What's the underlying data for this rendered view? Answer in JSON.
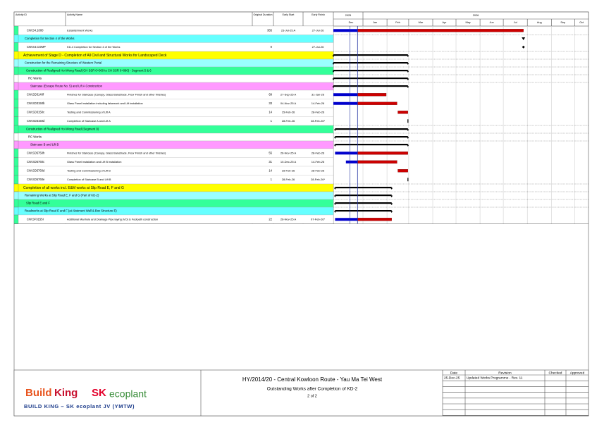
{
  "header": {
    "columns": [
      "Activity ID",
      "Activity Name",
      "Original Duration",
      "Early Start",
      "Early Finish"
    ],
    "years": [
      "2025",
      "2026"
    ],
    "months": [
      "Dec",
      "Jan",
      "Feb",
      "Mar",
      "Apr",
      "May",
      "Jun",
      "Jul",
      "Aug",
      "Sep",
      "Oct"
    ]
  },
  "rows": [
    {
      "id": "CW.S4.1000",
      "name": "Establishment Works",
      "duration": "365",
      "start": "23-Jul-25 A",
      "finish": "27-Jul-26"
    },
    {
      "label": "Completion for Section 4 of the Works",
      "color": "#66ffff"
    },
    {
      "id": "CW.S4.COMP",
      "name": "KD-4 Completion for Section 4 of the Works",
      "duration": "0",
      "finish": "27-Jul-26"
    },
    {
      "label": "Achievement of Stage D -  Completion of All Civil and Structural Works for Landscaped Deck",
      "color": "#ffff00"
    },
    {
      "label": "Construction for the Remaining Structure of Western Portal",
      "color": "#99ffff"
    },
    {
      "label": "Construction of Realigned Hoi Wong Road (CH SSR 0+000 to CH SSR 0+080) - Segment 5 & 6",
      "color": "#33ff99"
    },
    {
      "label": "RC Works",
      "color": "#ffffff"
    },
    {
      "label": "Staircase (Escape Route No. 5) and Lift A Construction",
      "color": "#ff99ff"
    },
    {
      "id": "CW.SD3140f",
      "name": "Finishes for Staircase (Canopy, Glass Balustrade, Floor Finish and other finishes)",
      "duration": "69",
      "start": "27-Sep-25 A",
      "finish": "31-Jan-26"
    },
    {
      "id": "CW.SD3150b",
      "name": "Glass Panel installation including falsework and Lift installation",
      "duration": "33",
      "start": "04-Nov-25 A",
      "finish": "14-Feb-26"
    },
    {
      "id": "CW.SD3150c",
      "name": "Testing and Commissioning of Lift A",
      "duration": "14",
      "start": "15-Feb-26",
      "finish": "28-Feb-26"
    },
    {
      "id": "CW.SD3150d",
      "name": "Completion of Staircase A and Lift A",
      "duration": "1",
      "start": "28-Feb-26",
      "finish": "28-Feb-26*"
    },
    {
      "label": "Construction of Realigned Hoi Wong Road (Segment 9)",
      "color": "#33ff99"
    },
    {
      "label": "RC Works",
      "color": "#ffffff"
    },
    {
      "label": "Staircase B and Lift B",
      "color": "#ff99ff"
    },
    {
      "id": "CW.SD5750h",
      "name": "Finishes for Staircase (Canopy, Glass Balustrade, Floor Finish and other finishes)",
      "duration": "55",
      "start": "26-Nov-25 A",
      "finish": "28-Feb-26"
    },
    {
      "id": "CW.SD5760c",
      "name": "Glass Panel installation and Lift B installation",
      "duration": "31",
      "start": "10-Dec-25 A",
      "finish": "14-Feb-26"
    },
    {
      "id": "CW.SD5760d",
      "name": "Testing and Commissioning of Lift B",
      "duration": "14",
      "start": "15-Feb-26",
      "finish": "28-Feb-26"
    },
    {
      "id": "CW.SD5760e",
      "name": "Completion of Staircase B and Lift B",
      "duration": "1",
      "start": "28-Feb-26",
      "finish": "28-Feb-26*"
    },
    {
      "label": "Completion of all works incl. E&M works at Slip Road E, F and G",
      "color": "#ffff00"
    },
    {
      "label": "Remaining Works at Slip Road E, F and G (Part of KD-2)",
      "color": "#99ffff"
    },
    {
      "label": "Slip Road E and F",
      "color": "#33ff99"
    },
    {
      "label": "Roadworks at Slip Road E and F (at Abutment Wall & Box Structure E)",
      "color": "#66ffff"
    },
    {
      "id": "CW.SF3155I",
      "name": "Additional Manhole and Drainage Pipe laying (VO) & Footpath construction",
      "duration": "22",
      "start": "26-Nov-25 A",
      "finish": "07-Feb-26*"
    }
  ],
  "footer": {
    "logo": {
      "build": "Build",
      "king": "King",
      "sk": "SK",
      "ecoplant": "ecoplant",
      "jv": "BUILD KING – SK ecoplant JV (YMTW)"
    },
    "title": "HY/2014/20 - Central Kowloon Route - Yau Ma Tei West",
    "subtitle": "Outstanding Works after Completion of KD-2",
    "page": "2 of 2",
    "revision_headers": [
      "Date",
      "Revision",
      "Checked",
      "Approved"
    ],
    "revisions": [
      {
        "date": "25-Dec-25",
        "revision": "Updated Works Programme - Rev. 11"
      }
    ]
  }
}
